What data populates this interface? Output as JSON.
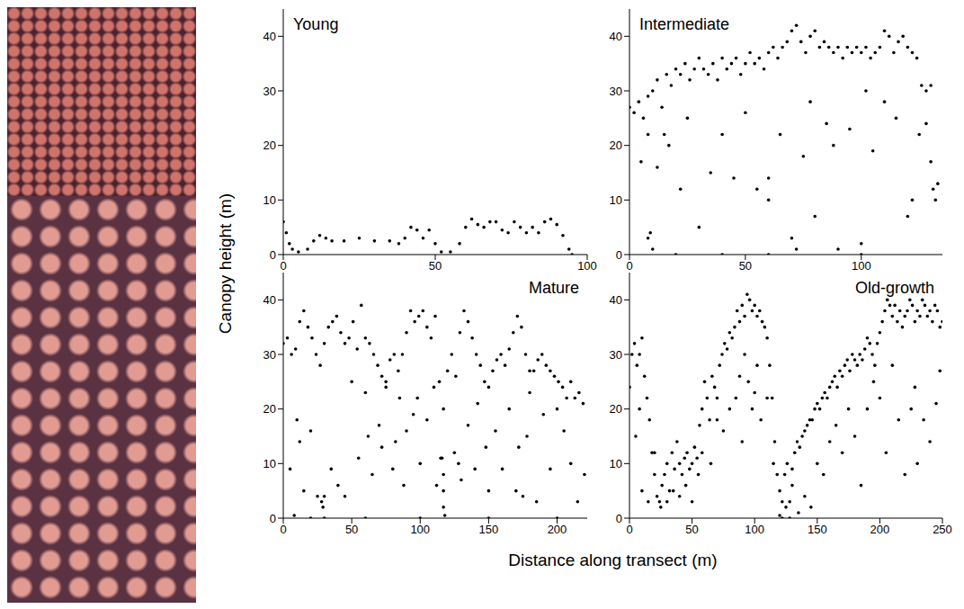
{
  "xlabel": "Distance along transect (m)",
  "ylabel": "Canopy height (m)",
  "chart_data": [
    {
      "type": "scatter",
      "title": "Young",
      "color": "#000000",
      "marker": "circle",
      "grid": false,
      "xlim": [
        0,
        100
      ],
      "xticks": [
        0,
        50,
        100
      ],
      "ylim": [
        0,
        45
      ],
      "yticks": [
        0,
        10,
        20,
        30,
        40
      ],
      "x": [
        0,
        1,
        2,
        3,
        5,
        8,
        10,
        12,
        14,
        16,
        20,
        25,
        30,
        35,
        38,
        40,
        42,
        44,
        46,
        48,
        50,
        52,
        55,
        58,
        60,
        62,
        64,
        66,
        68,
        70,
        72,
        74,
        76,
        78,
        80,
        82,
        84,
        86,
        88,
        90,
        92,
        94,
        95
      ],
      "values": [
        6,
        4,
        2,
        1,
        0.5,
        1,
        2.5,
        3.5,
        3,
        2.5,
        2.5,
        3,
        2.5,
        2.5,
        2,
        3,
        5,
        4.5,
        3,
        4.5,
        2,
        0.5,
        0.5,
        2,
        5,
        6.5,
        5.5,
        5,
        6,
        6,
        4.5,
        4,
        6,
        5,
        4,
        5,
        4,
        6,
        6.5,
        5.5,
        3.5,
        1,
        0
      ]
    },
    {
      "type": "scatter",
      "title": "Intermediate",
      "color": "#000000",
      "marker": "circle",
      "grid": false,
      "xlim": [
        0,
        135
      ],
      "xticks": [
        0,
        50,
        100
      ],
      "ylim": [
        0,
        45
      ],
      "yticks": [
        0,
        10,
        20,
        30,
        40
      ],
      "x": [
        0,
        2,
        4,
        6,
        8,
        10,
        12,
        14,
        16,
        18,
        20,
        22,
        24,
        26,
        28,
        30,
        32,
        34,
        36,
        38,
        40,
        42,
        44,
        46,
        48,
        50,
        52,
        54,
        56,
        58,
        60,
        62,
        64,
        66,
        68,
        70,
        72,
        74,
        76,
        78,
        80,
        82,
        84,
        86,
        88,
        90,
        92,
        94,
        96,
        98,
        100,
        102,
        104,
        106,
        108,
        110,
        112,
        114,
        116,
        118,
        120,
        122,
        124,
        126,
        128,
        130,
        5,
        8,
        8,
        9,
        10,
        12,
        15,
        17,
        22,
        25,
        30,
        35,
        40,
        45,
        50,
        55,
        60,
        60,
        65,
        70,
        72,
        75,
        78,
        80,
        85,
        88,
        90,
        95,
        100,
        102,
        105,
        110,
        115,
        120,
        122,
        125,
        128,
        130,
        131,
        132,
        133,
        20,
        40,
        60,
        100
      ],
      "values": [
        27,
        26,
        28,
        25,
        29,
        30,
        32,
        27,
        33,
        31,
        34,
        33,
        35,
        32,
        34,
        36,
        34,
        33,
        35,
        32,
        36,
        34,
        35,
        36,
        33,
        35,
        37,
        35,
        36,
        34,
        37,
        38,
        36,
        38,
        39,
        41,
        42,
        39,
        37,
        40,
        41,
        38,
        39,
        38,
        37,
        38,
        36,
        38,
        37,
        38,
        37,
        38,
        36,
        37,
        38,
        41,
        40,
        37,
        39,
        40,
        38,
        37,
        36,
        31,
        30,
        31,
        17,
        22,
        3,
        4,
        1,
        16,
        22,
        20,
        12,
        25,
        5,
        15,
        22,
        14,
        26,
        12,
        14,
        10,
        22,
        3,
        1,
        18,
        28,
        7,
        24,
        20,
        1,
        23,
        2,
        30,
        19,
        28,
        25,
        7,
        10,
        22,
        24,
        17,
        12,
        10,
        13,
        0,
        0,
        0,
        0
      ]
    },
    {
      "type": "scatter",
      "title": "Mature",
      "color": "#000000",
      "marker": "circle",
      "grid": false,
      "xlim": [
        0,
        222
      ],
      "xticks": [
        0,
        50,
        100,
        150,
        200
      ],
      "ylim": [
        0,
        45
      ],
      "yticks": [
        0,
        10,
        20,
        30,
        40
      ],
      "x": [
        0,
        3,
        6,
        9,
        12,
        15,
        18,
        21,
        24,
        27,
        30,
        33,
        36,
        39,
        42,
        45,
        48,
        51,
        54,
        57,
        60,
        63,
        66,
        69,
        72,
        75,
        78,
        81,
        84,
        87,
        90,
        93,
        96,
        99,
        102,
        105,
        108,
        111,
        114,
        117,
        120,
        123,
        126,
        129,
        132,
        135,
        138,
        141,
        144,
        147,
        150,
        153,
        156,
        159,
        162,
        165,
        168,
        171,
        174,
        177,
        180,
        183,
        186,
        189,
        192,
        195,
        198,
        201,
        204,
        207,
        210,
        213,
        216,
        219,
        5,
        8,
        10,
        12,
        15,
        20,
        25,
        28,
        30,
        35,
        40,
        45,
        50,
        55,
        60,
        62,
        65,
        70,
        72,
        75,
        80,
        82,
        85,
        88,
        90,
        95,
        98,
        100,
        105,
        110,
        112,
        115,
        117,
        118,
        125,
        128,
        130,
        135,
        140,
        142,
        148,
        150,
        155,
        160,
        165,
        170,
        172,
        175,
        178,
        180,
        185,
        190,
        195,
        200,
        205,
        210,
        215,
        220,
        20,
        60,
        100,
        150,
        200,
        117,
        117,
        116,
        29,
        30
      ],
      "values": [
        32,
        33,
        30,
        31,
        36,
        38,
        35,
        33,
        30,
        28,
        32,
        35,
        36,
        37,
        34,
        32,
        33,
        36,
        31,
        39,
        33,
        32,
        30,
        28,
        26,
        25,
        29,
        30,
        27,
        30,
        34,
        38,
        36,
        37,
        38,
        35,
        33,
        37,
        25,
        20,
        27,
        30,
        26,
        34,
        38,
        36,
        33,
        30,
        28,
        25,
        24,
        27,
        29,
        30,
        28,
        31,
        34,
        37,
        35,
        30,
        27,
        27,
        29,
        30,
        28,
        27,
        26,
        25,
        24,
        22,
        25,
        22,
        23,
        21,
        9,
        0.5,
        18,
        14,
        5,
        16,
        4,
        3,
        0,
        9,
        6,
        4,
        25,
        11,
        23,
        15,
        8,
        17,
        13,
        24,
        9,
        14,
        22,
        6,
        16,
        19,
        22,
        10,
        18,
        24,
        6,
        11,
        2,
        0.5,
        12,
        10,
        7,
        17,
        9,
        21,
        13,
        5,
        16,
        9,
        20,
        5,
        13,
        4,
        15,
        23,
        3,
        19,
        9,
        20,
        16,
        10,
        3,
        8,
        0,
        0,
        0,
        0,
        0,
        5,
        8,
        11,
        2,
        4
      ]
    },
    {
      "type": "scatter",
      "title": "Old-growth",
      "color": "#000000",
      "marker": "circle",
      "grid": false,
      "xlim": [
        0,
        250
      ],
      "xticks": [
        0,
        50,
        100,
        150,
        200,
        250
      ],
      "ylim": [
        0,
        45
      ],
      "yticks": [
        0,
        10,
        20,
        30,
        40
      ],
      "x": [
        0,
        2,
        4,
        6,
        8,
        10,
        12,
        14,
        16,
        18,
        20,
        22,
        24,
        26,
        28,
        30,
        32,
        34,
        36,
        38,
        40,
        42,
        44,
        46,
        48,
        50,
        52,
        54,
        56,
        58,
        60,
        62,
        64,
        66,
        68,
        70,
        72,
        74,
        76,
        78,
        80,
        82,
        84,
        86,
        88,
        90,
        92,
        94,
        96,
        98,
        100,
        102,
        104,
        106,
        108,
        110,
        112,
        114,
        116,
        118,
        120,
        122,
        124,
        126,
        128,
        130,
        132,
        134,
        136,
        138,
        140,
        142,
        144,
        146,
        148,
        150,
        152,
        154,
        156,
        158,
        160,
        162,
        164,
        166,
        168,
        170,
        172,
        174,
        176,
        178,
        180,
        182,
        184,
        186,
        188,
        190,
        192,
        194,
        196,
        198,
        200,
        202,
        204,
        206,
        208,
        210,
        212,
        214,
        216,
        218,
        220,
        222,
        224,
        226,
        228,
        230,
        232,
        234,
        236,
        238,
        240,
        242,
        244,
        246,
        248,
        250,
        5,
        8,
        10,
        15,
        20,
        25,
        30,
        35,
        40,
        45,
        50,
        55,
        58,
        65,
        70,
        75,
        80,
        85,
        88,
        90,
        92,
        95,
        98,
        100,
        102,
        105,
        110,
        115,
        120,
        122,
        125,
        128,
        130,
        135,
        140,
        145,
        150,
        155,
        160,
        165,
        170,
        175,
        180,
        185,
        190,
        195,
        200,
        205,
        210,
        215,
        220,
        225,
        228,
        230,
        235,
        240,
        245,
        248
      ],
      "values": [
        24,
        30,
        32,
        28,
        30,
        33,
        26,
        22,
        18,
        12,
        8,
        4,
        3,
        6,
        8,
        3,
        5,
        12,
        9,
        14,
        10,
        8,
        11,
        12,
        9,
        10,
        13,
        11,
        17,
        20,
        25,
        22,
        18,
        26,
        24,
        22,
        28,
        30,
        32,
        31,
        34,
        33,
        35,
        38,
        36,
        39,
        37,
        41,
        40,
        38,
        39,
        37,
        38,
        36,
        35,
        33,
        28,
        22,
        14,
        8,
        5,
        3,
        8,
        10,
        3,
        9,
        12,
        14,
        13,
        15,
        16,
        17,
        18,
        18,
        20,
        21,
        20,
        22,
        23,
        22,
        24,
        25,
        26,
        24,
        27,
        26,
        28,
        29,
        27,
        30,
        29,
        28,
        30,
        29,
        31,
        33,
        32,
        30,
        28,
        32,
        34,
        36,
        38,
        40,
        39,
        37,
        39,
        36,
        38,
        35,
        37,
        38,
        40,
        39,
        36,
        38,
        37,
        40,
        39,
        37,
        38,
        36,
        39,
        38,
        35,
        36,
        15,
        20,
        5,
        3,
        12,
        2,
        10,
        5,
        4,
        6,
        3,
        8,
        12,
        10,
        18,
        16,
        20,
        22,
        26,
        14,
        30,
        25,
        20,
        23,
        28,
        18,
        22,
        10,
        0.5,
        0,
        2,
        0,
        6,
        1,
        4,
        2,
        10,
        8,
        14,
        17,
        12,
        20,
        15,
        6,
        20,
        25,
        22,
        12,
        28,
        18,
        8,
        20,
        24,
        10,
        18,
        14,
        21,
        27
      ]
    }
  ]
}
